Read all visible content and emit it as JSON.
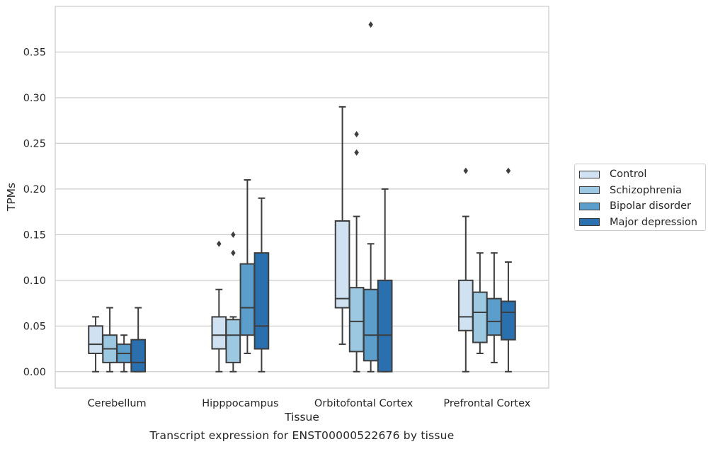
{
  "chart_data": {
    "type": "box",
    "xlabel": "Tissue",
    "ylabel": "TPMs",
    "caption": "Transcript expression for ENST00000522676 by tissue",
    "ylim": [
      -0.018,
      0.4
    ],
    "yticks": [
      0.0,
      0.05,
      0.1,
      0.15,
      0.2,
      0.25,
      0.3,
      0.35
    ],
    "ytick_labels": [
      "0.00",
      "0.05",
      "0.10",
      "0.15",
      "0.20",
      "0.25",
      "0.30",
      "0.35"
    ],
    "grid": "horizontal",
    "legend_position": "right",
    "categories": [
      "Cerebellum",
      "Hipppocampus",
      "Orbitofontal Cortex",
      "Prefrontal Cortex"
    ],
    "series": [
      {
        "name": "Control",
        "color": "#d0e1f1",
        "boxes": [
          {
            "whislo": 0.0,
            "q1": 0.02,
            "med": 0.03,
            "q3": 0.05,
            "whishi": 0.06,
            "fliers": []
          },
          {
            "whislo": 0.0,
            "q1": 0.025,
            "med": 0.04,
            "q3": 0.06,
            "whishi": 0.09,
            "fliers": [
              0.14
            ]
          },
          {
            "whislo": 0.03,
            "q1": 0.07,
            "med": 0.08,
            "q3": 0.165,
            "whishi": 0.29,
            "fliers": []
          },
          {
            "whislo": 0.0,
            "q1": 0.045,
            "med": 0.06,
            "q3": 0.1,
            "whishi": 0.17,
            "fliers": [
              0.22
            ]
          }
        ]
      },
      {
        "name": "Schizophrenia",
        "color": "#9cc8e2",
        "boxes": [
          {
            "whislo": 0.0,
            "q1": 0.01,
            "med": 0.025,
            "q3": 0.04,
            "whishi": 0.07,
            "fliers": []
          },
          {
            "whislo": 0.0,
            "q1": 0.01,
            "med": 0.04,
            "q3": 0.057,
            "whishi": 0.06,
            "fliers": [
              0.13,
              0.15
            ]
          },
          {
            "whislo": 0.0,
            "q1": 0.022,
            "med": 0.055,
            "q3": 0.092,
            "whishi": 0.17,
            "fliers": [
              0.24,
              0.26
            ]
          },
          {
            "whislo": 0.02,
            "q1": 0.032,
            "med": 0.065,
            "q3": 0.087,
            "whishi": 0.13,
            "fliers": []
          }
        ]
      },
      {
        "name": "Bipolar disorder",
        "color": "#5b9ecc",
        "boxes": [
          {
            "whislo": 0.0,
            "q1": 0.01,
            "med": 0.02,
            "q3": 0.03,
            "whishi": 0.04,
            "fliers": []
          },
          {
            "whislo": 0.02,
            "q1": 0.04,
            "med": 0.07,
            "q3": 0.118,
            "whishi": 0.21,
            "fliers": []
          },
          {
            "whislo": 0.0,
            "q1": 0.012,
            "med": 0.04,
            "q3": 0.09,
            "whishi": 0.14,
            "fliers": [
              0.38
            ]
          },
          {
            "whislo": 0.01,
            "q1": 0.04,
            "med": 0.055,
            "q3": 0.08,
            "whishi": 0.13,
            "fliers": []
          }
        ]
      },
      {
        "name": "Major depression",
        "color": "#2a6fae",
        "boxes": [
          {
            "whislo": 0.0,
            "q1": 0.0,
            "med": 0.01,
            "q3": 0.035,
            "whishi": 0.07,
            "fliers": []
          },
          {
            "whislo": 0.0,
            "q1": 0.025,
            "med": 0.05,
            "q3": 0.13,
            "whishi": 0.19,
            "fliers": []
          },
          {
            "whislo": 0.0,
            "q1": 0.0,
            "med": 0.04,
            "q3": 0.1,
            "whishi": 0.2,
            "fliers": []
          },
          {
            "whislo": 0.0,
            "q1": 0.035,
            "med": 0.065,
            "q3": 0.077,
            "whishi": 0.12,
            "fliers": [
              0.22
            ]
          }
        ]
      }
    ]
  }
}
